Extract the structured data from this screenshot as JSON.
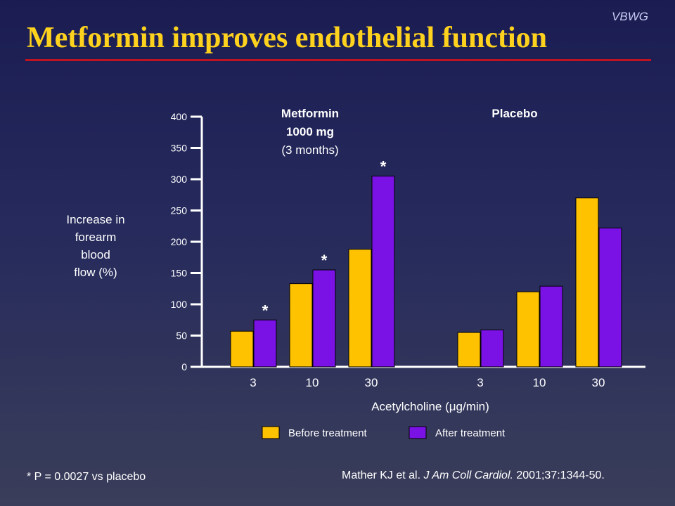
{
  "header": {
    "watermark": "VBWG",
    "title": "Metformin improves endothelial function"
  },
  "colors": {
    "before": "#ffc200",
    "after": "#7a12e6",
    "title": "#ffd21e",
    "rule": "#c1121f"
  },
  "chart_data": {
    "type": "bar",
    "ylabel": "Increase in forearm blood flow (%)",
    "ylabel_lines": [
      "Increase in",
      "forearm",
      "blood",
      "flow (%)"
    ],
    "xlabel": "Acetylcholine (μg/min)",
    "ylim": [
      0,
      400
    ],
    "yticks": [
      0,
      50,
      100,
      150,
      200,
      250,
      300,
      350,
      400
    ],
    "legend_position": "bottom",
    "grid": false,
    "groups": [
      {
        "name_lines": [
          "Metformin",
          "1000 mg",
          "(3 months)"
        ],
        "categories": [
          "3",
          "10",
          "30"
        ],
        "series": [
          {
            "name": "Before treatment",
            "values": [
              57,
              133,
              188
            ]
          },
          {
            "name": "After treatment",
            "values": [
              75,
              155,
              305
            ]
          }
        ],
        "significant": [
          true,
          true,
          true
        ]
      },
      {
        "name_lines": [
          "Placebo"
        ],
        "categories": [
          "3",
          "10",
          "30"
        ],
        "series": [
          {
            "name": "Before treatment",
            "values": [
              55,
              120,
              270
            ]
          },
          {
            "name": "After treatment",
            "values": [
              59,
              129,
              222
            ]
          }
        ],
        "significant": [
          false,
          false,
          false
        ]
      }
    ],
    "significance_marker": "*"
  },
  "footer": {
    "footnote": "* P = 0.0027 vs placebo",
    "citation_authors": "Mather KJ et al. ",
    "citation_journal": "J Am Coll Cardiol.",
    "citation_details": " 2001;37:1344-50."
  }
}
